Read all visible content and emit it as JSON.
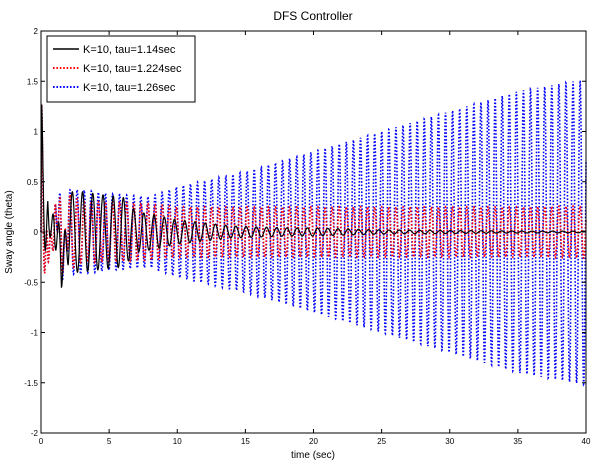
{
  "chart_data": {
    "type": "line",
    "title": "DFS Controller",
    "xlabel": "time (sec)",
    "ylabel": "Sway angle (theta)",
    "xlim": [
      0,
      40
    ],
    "ylim": [
      -2,
      2
    ],
    "xticks": [
      0,
      5,
      10,
      15,
      20,
      25,
      30,
      35,
      40
    ],
    "yticks": [
      -2,
      -1.5,
      -1,
      -0.5,
      0,
      0.5,
      1,
      1.5,
      2
    ],
    "xtick_labels": [
      "0",
      "5",
      "10",
      "15",
      "20",
      "25",
      "30",
      "35",
      "40"
    ],
    "ytick_labels": [
      "-2",
      "-1.5",
      "-1",
      "-0.5",
      "0",
      "0.5",
      "1",
      "1.5",
      "2"
    ],
    "grid": false,
    "legend_position": "top-left",
    "series": [
      {
        "name": "K=10, tau=1.14sec",
        "color": "#000000",
        "style": "solid",
        "period": 0.75,
        "points": [
          [
            0,
            1.45
          ],
          [
            0.5,
            -0.38
          ],
          [
            1,
            0.42
          ],
          [
            1.5,
            -0.6
          ],
          [
            2,
            0.4
          ],
          [
            3,
            0.4
          ],
          [
            4,
            0.38
          ],
          [
            5,
            0.36
          ],
          [
            6,
            0.35
          ],
          [
            7,
            0.2
          ],
          [
            8,
            0.18
          ],
          [
            10,
            0.12
          ],
          [
            12,
            0.09
          ],
          [
            14,
            0.06
          ],
          [
            16,
            0.05
          ],
          [
            18,
            0.04
          ],
          [
            20,
            0.04
          ],
          [
            25,
            0.02
          ],
          [
            30,
            0.015
          ],
          [
            35,
            0.01
          ],
          [
            40,
            0.008
          ]
        ]
      },
      {
        "name": "K=10, tau=1.224sec",
        "color": "#ff0000",
        "style": "dotted",
        "period": 0.52,
        "points": [
          [
            0,
            1.45
          ],
          [
            0.5,
            -0.38
          ],
          [
            1,
            0.42
          ],
          [
            1.5,
            -0.6
          ],
          [
            2,
            0.38
          ],
          [
            3,
            0.3
          ],
          [
            5,
            0.3
          ],
          [
            8,
            0.28
          ],
          [
            10,
            0.25
          ],
          [
            15,
            0.25
          ],
          [
            20,
            0.25
          ],
          [
            25,
            0.25
          ],
          [
            30,
            0.25
          ],
          [
            35,
            0.25
          ],
          [
            40,
            0.26
          ]
        ]
      },
      {
        "name": "K=10, tau=1.26sec",
        "color": "#0000ff",
        "style": "dotted",
        "period": 0.52,
        "points": [
          [
            0,
            1.45
          ],
          [
            0.5,
            -0.38
          ],
          [
            1,
            0.42
          ],
          [
            1.5,
            -0.68
          ],
          [
            2,
            0.42
          ],
          [
            3,
            0.42
          ],
          [
            5,
            0.38
          ],
          [
            8,
            0.35
          ],
          [
            10,
            0.45
          ],
          [
            15,
            0.6
          ],
          [
            20,
            0.8
          ],
          [
            25,
            1.0
          ],
          [
            30,
            1.2
          ],
          [
            35,
            1.4
          ],
          [
            40,
            1.52
          ]
        ]
      }
    ]
  }
}
